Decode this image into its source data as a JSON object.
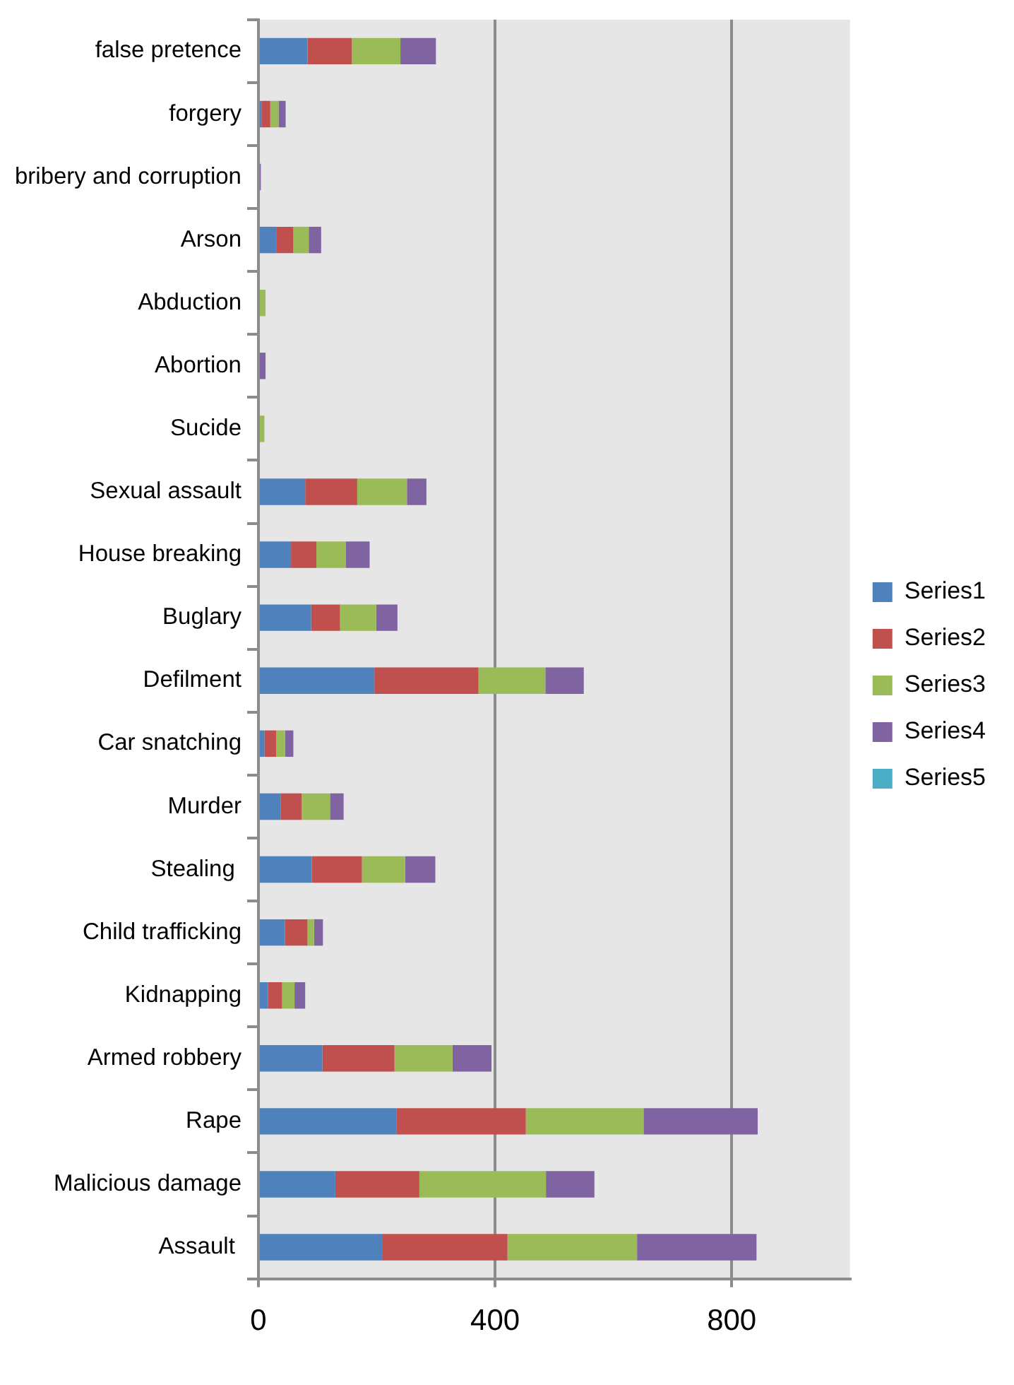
{
  "chart_data": {
    "type": "bar",
    "orientation": "horizontal",
    "stacked": true,
    "categories": [
      "false pretence",
      "forgery",
      "bribery and corruption",
      "Arson",
      "Abduction",
      "Abortion",
      "Sucide",
      "Sexual assault",
      "House breaking",
      "Buglary",
      "Defilment",
      "Car snatching",
      "Murder",
      "Stealing ",
      "Child trafficking",
      "Kidnapping",
      "Armed robbery",
      "Rape",
      "Malicious damage",
      "Assault "
    ],
    "series": [
      {
        "name": "Series1",
        "color": "#4f81bd",
        "values": [
          83,
          5,
          0,
          30,
          0,
          0,
          0,
          79,
          55,
          89,
          196,
          10,
          38,
          90,
          45,
          16,
          108,
          233,
          130,
          209
        ]
      },
      {
        "name": "Series2",
        "color": "#c0504d",
        "values": [
          75,
          15,
          0,
          29,
          0,
          0,
          0,
          88,
          43,
          49,
          176,
          20,
          35,
          85,
          38,
          24,
          122,
          219,
          142,
          212
        ]
      },
      {
        "name": "Series3",
        "color": "#9bbb59",
        "values": [
          82,
          14,
          0,
          26,
          12,
          0,
          10,
          84,
          50,
          61,
          113,
          15,
          48,
          73,
          11,
          21,
          98,
          199,
          214,
          219
        ]
      },
      {
        "name": "Series4",
        "color": "#8064a2",
        "values": [
          60,
          12,
          4,
          21,
          0,
          12,
          0,
          33,
          40,
          36,
          65,
          14,
          23,
          51,
          15,
          18,
          66,
          193,
          82,
          202
        ]
      },
      {
        "name": "Series5",
        "color": "#4bacc6",
        "values": [
          0,
          0,
          0,
          0,
          0,
          0,
          0,
          0,
          0,
          0,
          0,
          0,
          0,
          0,
          0,
          0,
          0,
          0,
          0,
          0
        ]
      }
    ],
    "xlim": [
      0,
      1000
    ],
    "xticks": [
      0,
      400,
      800
    ],
    "grid": "x",
    "legend": "right"
  }
}
